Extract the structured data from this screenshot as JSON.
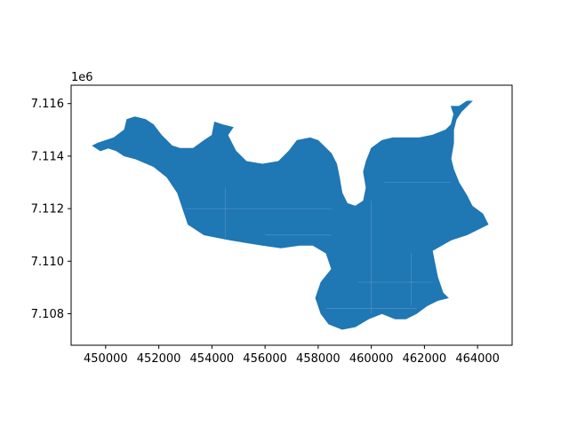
{
  "chart_data": {
    "type": "map",
    "offset_text": "1e6",
    "xlim": [
      448700,
      465300
    ],
    "ylim": [
      7106800,
      7116700
    ],
    "x_ticks": [
      {
        "value": 450000,
        "label": "450000"
      },
      {
        "value": 452000,
        "label": "452000"
      },
      {
        "value": 454000,
        "label": "454000"
      },
      {
        "value": 456000,
        "label": "456000"
      },
      {
        "value": 458000,
        "label": "458000"
      },
      {
        "value": 460000,
        "label": "460000"
      },
      {
        "value": 462000,
        "label": "462000"
      },
      {
        "value": 464000,
        "label": "464000"
      }
    ],
    "y_ticks": [
      {
        "value": 7108000,
        "label": "7.108"
      },
      {
        "value": 7110000,
        "label": "7.110"
      },
      {
        "value": 7112000,
        "label": "7.112"
      },
      {
        "value": 7114000,
        "label": "7.114"
      },
      {
        "value": 7116000,
        "label": "7.116"
      }
    ],
    "fill_color": "#1f77b4",
    "polygon": [
      [
        449700,
        7114500
      ],
      [
        450300,
        7114700
      ],
      [
        450700,
        7115000
      ],
      [
        450800,
        7115400
      ],
      [
        451100,
        7115500
      ],
      [
        451500,
        7115400
      ],
      [
        451800,
        7115200
      ],
      [
        452100,
        7114800
      ],
      [
        452500,
        7114400
      ],
      [
        452800,
        7114300
      ],
      [
        453300,
        7114300
      ],
      [
        453700,
        7114600
      ],
      [
        454000,
        7114800
      ],
      [
        454100,
        7115300
      ],
      [
        454400,
        7115200
      ],
      [
        454800,
        7115100
      ],
      [
        454600,
        7114800
      ],
      [
        454900,
        7114200
      ],
      [
        455300,
        7113800
      ],
      [
        455900,
        7113700
      ],
      [
        456500,
        7113800
      ],
      [
        456900,
        7114200
      ],
      [
        457200,
        7114600
      ],
      [
        457700,
        7114700
      ],
      [
        458000,
        7114600
      ],
      [
        458300,
        7114300
      ],
      [
        458500,
        7114100
      ],
      [
        458700,
        7113700
      ],
      [
        458800,
        7113200
      ],
      [
        458900,
        7112600
      ],
      [
        459100,
        7112200
      ],
      [
        459400,
        7112100
      ],
      [
        459700,
        7112300
      ],
      [
        459800,
        7112800
      ],
      [
        459700,
        7113400
      ],
      [
        459800,
        7113800
      ],
      [
        460000,
        7114300
      ],
      [
        460400,
        7114600
      ],
      [
        460800,
        7114700
      ],
      [
        461300,
        7114700
      ],
      [
        461800,
        7114700
      ],
      [
        462300,
        7114800
      ],
      [
        462800,
        7115000
      ],
      [
        463000,
        7115200
      ],
      [
        463100,
        7115600
      ],
      [
        463000,
        7115900
      ],
      [
        463300,
        7115900
      ],
      [
        463600,
        7116100
      ],
      [
        463800,
        7116100
      ],
      [
        463400,
        7115700
      ],
      [
        463200,
        7115400
      ],
      [
        463100,
        7115000
      ],
      [
        463100,
        7114500
      ],
      [
        463000,
        7113900
      ],
      [
        463100,
        7113500
      ],
      [
        463300,
        7113000
      ],
      [
        463600,
        7112500
      ],
      [
        463800,
        7112100
      ],
      [
        464200,
        7111800
      ],
      [
        464400,
        7111400
      ],
      [
        463600,
        7111000
      ],
      [
        463000,
        7110800
      ],
      [
        462300,
        7110400
      ],
      [
        462400,
        7109900
      ],
      [
        462500,
        7109400
      ],
      [
        462700,
        7108800
      ],
      [
        462900,
        7108600
      ],
      [
        462500,
        7108500
      ],
      [
        462100,
        7108300
      ],
      [
        461700,
        7108000
      ],
      [
        461300,
        7107800
      ],
      [
        460900,
        7107800
      ],
      [
        460400,
        7108000
      ],
      [
        459900,
        7107800
      ],
      [
        459400,
        7107500
      ],
      [
        458900,
        7107400
      ],
      [
        458400,
        7107600
      ],
      [
        458100,
        7108000
      ],
      [
        457900,
        7108600
      ],
      [
        458100,
        7109200
      ],
      [
        458500,
        7109700
      ],
      [
        458300,
        7110300
      ],
      [
        457800,
        7110600
      ],
      [
        457300,
        7110600
      ],
      [
        456600,
        7110500
      ],
      [
        455900,
        7110600
      ],
      [
        455300,
        7110700
      ],
      [
        454700,
        7110800
      ],
      [
        454200,
        7110900
      ],
      [
        453700,
        7111000
      ],
      [
        453100,
        7111400
      ],
      [
        452900,
        7112000
      ],
      [
        452700,
        7112600
      ],
      [
        452300,
        7113200
      ],
      [
        451800,
        7113600
      ],
      [
        451100,
        7113900
      ],
      [
        450700,
        7114000
      ],
      [
        450400,
        7114200
      ],
      [
        450100,
        7114300
      ],
      [
        449800,
        7114200
      ],
      [
        449500,
        7114400
      ]
    ]
  }
}
